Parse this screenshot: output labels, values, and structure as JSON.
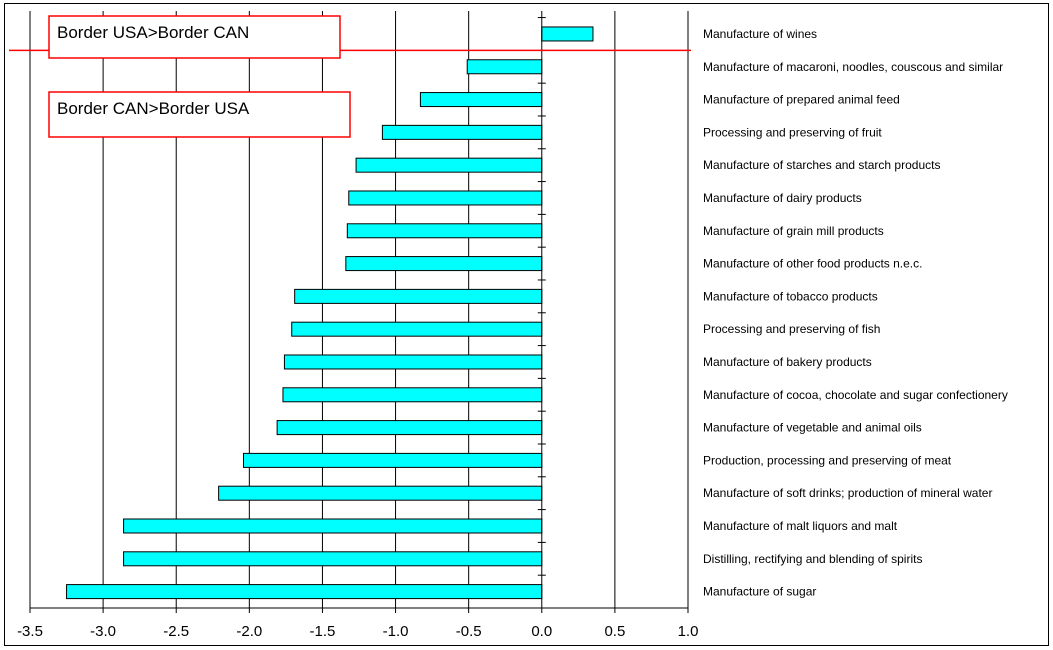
{
  "chart_data": {
    "type": "bar",
    "orientation": "horizontal",
    "categories": [
      "Manufacture of wines",
      "Manufacture of macaroni, noodles, couscous and similar",
      "Manufacture of prepared animal feed",
      "Processing and preserving of fruit",
      "Manufacture of starches and starch products",
      "Manufacture of dairy products",
      "Manufacture of grain mill products",
      "Manufacture of other food products n.e.c.",
      "Manufacture of tobacco products",
      "Processing and preserving of fish",
      "Manufacture of bakery products",
      "Manufacture of cocoa, chocolate and sugar confectionery",
      "Manufacture of vegetable and animal oils",
      "Production, processing and preserving of meat",
      "Manufacture of soft drinks; production of mineral water",
      "Manufacture of malt liquors and malt",
      "Distilling, rectifying and blending of spirits",
      "Manufacture of sugar"
    ],
    "values": [
      0.35,
      -0.51,
      -0.83,
      -1.09,
      -1.27,
      -1.32,
      -1.33,
      -1.34,
      -1.69,
      -1.71,
      -1.76,
      -1.77,
      -1.81,
      -2.04,
      -2.21,
      -2.86,
      -2.86,
      -3.25
    ],
    "xlim": [
      -3.5,
      1.0
    ],
    "xticks": [
      "-3.5",
      "-3.0",
      "-2.5",
      "-2.0",
      "-1.5",
      "-1.0",
      "-0.5",
      "0.0",
      "0.5",
      "1.0"
    ],
    "xtick_values": [
      -3.5,
      -3.0,
      -2.5,
      -2.0,
      -1.5,
      -1.0,
      -0.5,
      0.0,
      0.5,
      1.0
    ],
    "grid": "vertical",
    "title": "",
    "xlabel": "",
    "ylabel": "",
    "colors": {
      "bar_fill": "#00ffff",
      "bar_stroke": "#000000",
      "divider_line": "#ff0000",
      "annotation_border": "#ff0000"
    },
    "annotations": [
      "Border USA>Border CAN",
      "Border CAN>Border USA"
    ]
  }
}
